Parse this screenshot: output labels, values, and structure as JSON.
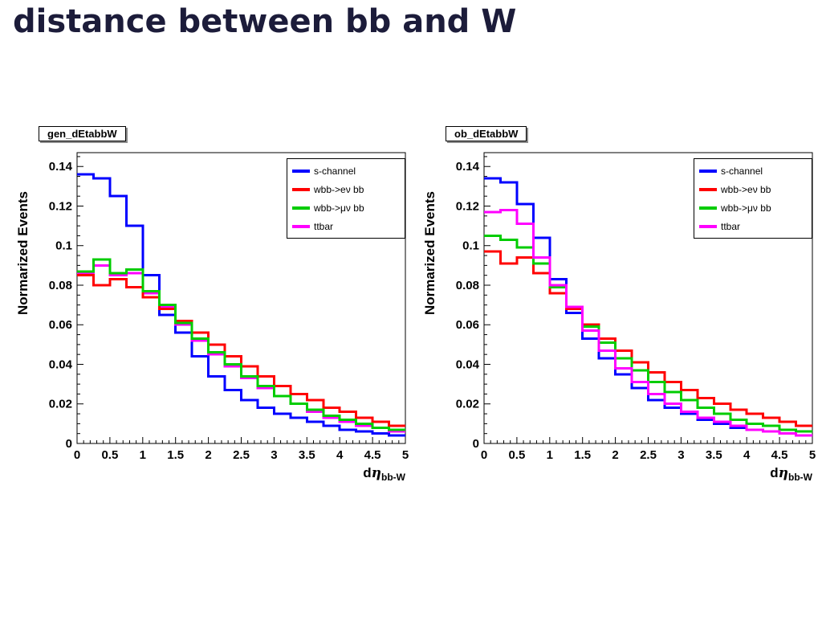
{
  "slide": {
    "title": "distance between bb and W"
  },
  "chart_data": [
    {
      "type": "line",
      "style": "step-histogram",
      "title": "gen_dEtabbW",
      "ylabel": "Normarized Events",
      "xlabel": "dη_bb-W",
      "xlabel_parts": {
        "prefix": "d",
        "symbol": "η",
        "subscript": "bb-W"
      },
      "xlim": [
        0,
        5
      ],
      "ylim": [
        0,
        0.147
      ],
      "bin_width": 0.25,
      "grid": false,
      "legend_position": "top-right",
      "x_ticks": [
        0,
        0.5,
        1,
        1.5,
        2,
        2.5,
        3,
        3.5,
        4,
        4.5,
        5
      ],
      "x_tick_labels": [
        "0",
        "0.5",
        "1",
        "1.5",
        "2",
        "2.5",
        "3",
        "3.5",
        "4",
        "4.5",
        "5"
      ],
      "y_ticks": [
        0,
        0.02,
        0.04,
        0.06,
        0.08,
        0.1,
        0.12,
        0.14
      ],
      "y_tick_labels": [
        "0",
        "0.02",
        "0.04",
        "0.06",
        "0.08",
        "0.1",
        "0.12",
        "0.14"
      ],
      "draw_order": [
        0,
        3,
        1,
        2
      ],
      "series": [
        {
          "name": "s-channel",
          "color": "#0000ff",
          "values": [
            0.136,
            0.134,
            0.125,
            0.11,
            0.085,
            0.065,
            0.056,
            0.044,
            0.034,
            0.027,
            0.022,
            0.018,
            0.015,
            0.013,
            0.011,
            0.009,
            0.007,
            0.006,
            0.005,
            0.004
          ]
        },
        {
          "name": "wbb->eν bb",
          "color": "#ff0000",
          "values": [
            0.085,
            0.08,
            0.083,
            0.079,
            0.074,
            0.068,
            0.062,
            0.056,
            0.05,
            0.044,
            0.039,
            0.034,
            0.029,
            0.025,
            0.022,
            0.018,
            0.016,
            0.013,
            0.011,
            0.009
          ]
        },
        {
          "name": "wbb->μν bb",
          "color": "#00cc00",
          "values": [
            0.087,
            0.093,
            0.086,
            0.088,
            0.077,
            0.07,
            0.061,
            0.053,
            0.046,
            0.04,
            0.034,
            0.029,
            0.024,
            0.02,
            0.017,
            0.014,
            0.012,
            0.01,
            0.008,
            0.007
          ]
        },
        {
          "name": "ttbar",
          "color": "#ff00ff",
          "values": [
            0.086,
            0.09,
            0.085,
            0.086,
            0.076,
            0.069,
            0.06,
            0.052,
            0.045,
            0.039,
            0.033,
            0.028,
            0.024,
            0.02,
            0.016,
            0.013,
            0.011,
            0.009,
            0.008,
            0.006
          ]
        }
      ]
    },
    {
      "type": "line",
      "style": "step-histogram",
      "title": "ob_dEtabbW",
      "ylabel": "Normarized Events",
      "xlabel": "dη_bb-W",
      "xlabel_parts": {
        "prefix": "d",
        "symbol": "η",
        "subscript": "bb-W"
      },
      "xlim": [
        0,
        5
      ],
      "ylim": [
        0,
        0.147
      ],
      "bin_width": 0.25,
      "grid": false,
      "legend_position": "top-right",
      "x_ticks": [
        0,
        0.5,
        1,
        1.5,
        2,
        2.5,
        3,
        3.5,
        4,
        4.5,
        5
      ],
      "x_tick_labels": [
        "0",
        "0.5",
        "1",
        "1.5",
        "2",
        "2.5",
        "3",
        "3.5",
        "4",
        "4.5",
        "5"
      ],
      "y_ticks": [
        0,
        0.02,
        0.04,
        0.06,
        0.08,
        0.1,
        0.12,
        0.14
      ],
      "y_tick_labels": [
        "0",
        "0.02",
        "0.04",
        "0.06",
        "0.08",
        "0.1",
        "0.12",
        "0.14"
      ],
      "draw_order": [
        0,
        1,
        2,
        3
      ],
      "series": [
        {
          "name": "s-channel",
          "color": "#0000ff",
          "values": [
            0.134,
            0.132,
            0.121,
            0.104,
            0.083,
            0.066,
            0.053,
            0.043,
            0.035,
            0.028,
            0.022,
            0.018,
            0.015,
            0.012,
            0.01,
            0.008,
            0.007,
            0.006,
            0.005,
            0.004
          ]
        },
        {
          "name": "wbb->eν bb",
          "color": "#ff0000",
          "values": [
            0.097,
            0.091,
            0.094,
            0.086,
            0.076,
            0.068,
            0.06,
            0.053,
            0.047,
            0.041,
            0.036,
            0.031,
            0.027,
            0.023,
            0.02,
            0.017,
            0.015,
            0.013,
            0.011,
            0.009
          ]
        },
        {
          "name": "wbb->μν bb",
          "color": "#00cc00",
          "values": [
            0.105,
            0.103,
            0.099,
            0.091,
            0.079,
            0.069,
            0.059,
            0.051,
            0.043,
            0.037,
            0.031,
            0.026,
            0.022,
            0.018,
            0.015,
            0.012,
            0.01,
            0.009,
            0.007,
            0.006
          ]
        },
        {
          "name": "ttbar",
          "color": "#ff00ff",
          "values": [
            0.117,
            0.118,
            0.111,
            0.094,
            0.08,
            0.069,
            0.057,
            0.047,
            0.038,
            0.031,
            0.025,
            0.02,
            0.016,
            0.013,
            0.011,
            0.009,
            0.007,
            0.006,
            0.005,
            0.004
          ]
        }
      ]
    }
  ]
}
